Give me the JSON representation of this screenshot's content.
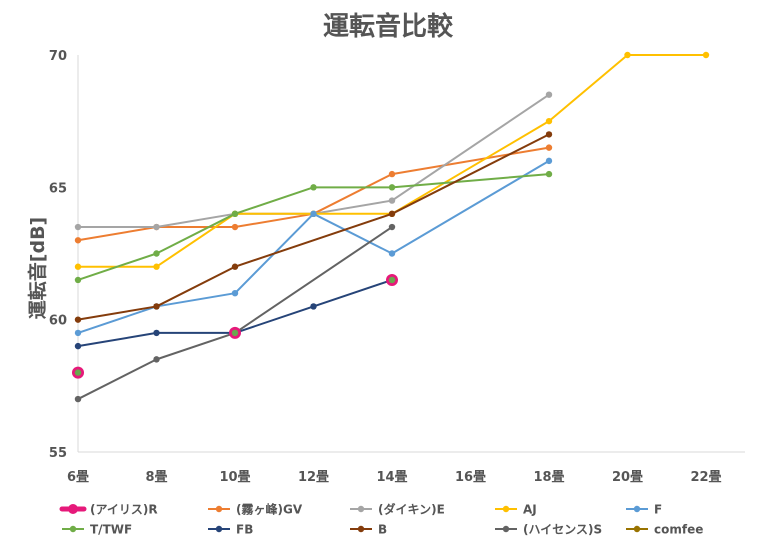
{
  "chart_data": {
    "type": "line",
    "title": "運転音比較",
    "xlabel": "",
    "ylabel": "運転音[dB]",
    "categories": [
      "6畳",
      "8畳",
      "10畳",
      "12畳",
      "14畳",
      "16畳",
      "18畳",
      "20畳",
      "22畳"
    ],
    "ylim": [
      55,
      70
    ],
    "yticks": [
      55,
      60,
      65,
      70
    ],
    "grid": false,
    "legend_position": "bottom",
    "series": [
      {
        "name": "(アイリス)R",
        "color": "#e6197a",
        "marker_color": "#6aa84f",
        "values": [
          58,
          null,
          59.5,
          null,
          61.5,
          null,
          null,
          null,
          null
        ]
      },
      {
        "name": "(霧ヶ峰)GV",
        "color": "#ed7d31",
        "values": [
          63,
          63.5,
          63.5,
          64,
          65.5,
          null,
          66.5,
          null,
          null
        ]
      },
      {
        "name": "(ダイキン)E",
        "color": "#a5a5a5",
        "values": [
          63.5,
          63.5,
          64,
          64,
          64.5,
          null,
          68.5,
          null,
          null
        ]
      },
      {
        "name": "AJ",
        "color": "#ffc000",
        "values": [
          62,
          62,
          64,
          64,
          64,
          null,
          67.5,
          70,
          70
        ]
      },
      {
        "name": "F",
        "color": "#5b9bd5",
        "values": [
          59.5,
          60.5,
          61,
          64,
          62.5,
          null,
          66,
          null,
          null
        ]
      },
      {
        "name": "T/TWF",
        "color": "#70ad47",
        "values": [
          61.5,
          62.5,
          64,
          65,
          65,
          null,
          65.5,
          null,
          null
        ]
      },
      {
        "name": "FB",
        "color": "#264478",
        "values": [
          59,
          59.5,
          59.5,
          60.5,
          61.5,
          null,
          null,
          null,
          null
        ]
      },
      {
        "name": "B",
        "color": "#843c0c",
        "values": [
          60,
          60.5,
          62,
          null,
          64,
          null,
          67,
          null,
          null
        ]
      },
      {
        "name": "(ハイセンス)S",
        "color": "#636363",
        "values": [
          57,
          58.5,
          59.5,
          null,
          63.5,
          null,
          null,
          null,
          null
        ]
      },
      {
        "name": "comfee",
        "color": "#997300",
        "values": [
          null,
          null,
          null,
          null,
          null,
          null,
          null,
          null,
          null
        ]
      }
    ]
  }
}
